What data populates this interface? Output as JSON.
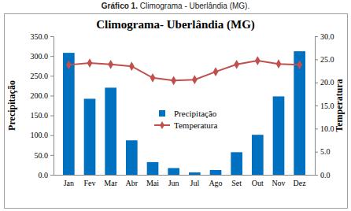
{
  "caption": {
    "number": "Gráfico 1.",
    "text": "Climograma - Uberlândia (MG)."
  },
  "chart_data": {
    "type": "bar",
    "title": "Climograma- Uberlândia (MG)",
    "y_label": "Precipitação",
    "y2_label": "Temperatura",
    "categories": [
      "Jan",
      "Fev",
      "Mar",
      "Abr",
      "Mai",
      "Jun",
      "Jul",
      "Ago",
      "Set",
      "Out",
      "Nov",
      "Dez"
    ],
    "series": [
      {
        "name": "Precipitação",
        "type": "bar",
        "color": "#0070c0",
        "values": [
          308,
          192,
          220,
          87,
          32,
          17,
          6,
          12,
          57,
          101,
          198,
          312
        ]
      },
      {
        "name": "Temperatura",
        "type": "line",
        "color": "#c0504d",
        "marker": "diamond",
        "axis": "y2",
        "values": [
          23.8,
          24.2,
          23.9,
          23.5,
          21.0,
          20.4,
          20.6,
          22.3,
          23.9,
          24.7,
          24.0,
          23.8
        ]
      }
    ],
    "ylim": [
      0,
      350
    ],
    "yticks": [
      {
        "value": 0,
        "label": "0.0"
      },
      {
        "value": 50,
        "label": "50.0"
      },
      {
        "value": 100,
        "label": "100.0"
      },
      {
        "value": 150,
        "label": "150.0"
      },
      {
        "value": 200,
        "label": "200.0"
      },
      {
        "value": 250,
        "label": "250.0"
      },
      {
        "value": 300,
        "label": "300.0"
      },
      {
        "value": 350,
        "label": "350.0"
      }
    ],
    "y2lim": [
      0,
      30
    ],
    "y2ticks": [
      {
        "value": 0,
        "label": "0.0"
      },
      {
        "value": 5,
        "label": "5.0"
      },
      {
        "value": 10,
        "label": "10.0"
      },
      {
        "value": 15,
        "label": "15.0"
      },
      {
        "value": 20,
        "label": "20.0"
      },
      {
        "value": 25,
        "label": "25.0"
      },
      {
        "value": 30,
        "label": "30.0"
      }
    ],
    "grid": false,
    "legend": "center"
  }
}
